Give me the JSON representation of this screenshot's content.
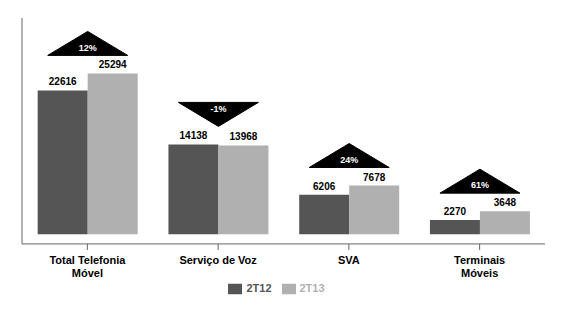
{
  "chart_data": {
    "type": "bar",
    "categories": [
      "Total Telefonia\nMóvel",
      "Serviço de Voz",
      "SVA",
      "Terminais\nMóveis"
    ],
    "series": [
      {
        "name": "2T12",
        "color": "#555555",
        "values": [
          22616,
          14138,
          6206,
          2270
        ]
      },
      {
        "name": "2T13",
        "color": "#b0b0b0",
        "values": [
          25294,
          13968,
          7678,
          3648
        ]
      }
    ],
    "ylim": [
      -1500,
      34000
    ],
    "tick_labels": "x",
    "data_labels": true,
    "legend": "bottom",
    "grid": false,
    "annotations": [
      {
        "text": "12%",
        "marker": "triangle-up"
      },
      {
        "text": "-1%",
        "marker": "triangle-down"
      },
      {
        "text": "24%",
        "marker": "triangle-up"
      },
      {
        "text": "61%",
        "marker": "triangle-up"
      }
    ]
  }
}
